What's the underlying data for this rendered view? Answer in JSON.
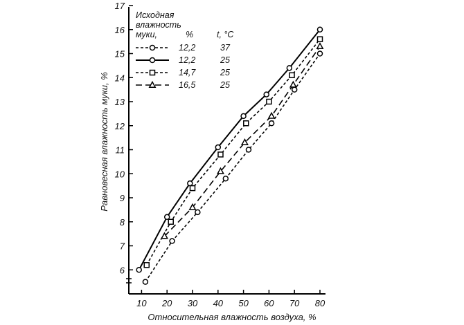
{
  "chart_data": {
    "type": "line",
    "xlabel": "Относительная влажность воздуха, %",
    "ylabel": "Равновесная влажность муки, %",
    "xlim": [
      5,
      80
    ],
    "ylim": [
      5,
      17
    ],
    "x_ticks": [
      "10",
      "20",
      "30",
      "40",
      "50",
      "60",
      "70",
      "80"
    ],
    "y_ticks": [
      "6",
      "7",
      "8",
      "9",
      "10",
      "11",
      "12",
      "13",
      "14",
      "15",
      "16",
      "17"
    ],
    "legend_position": "top-left",
    "legend": {
      "title_line1": "Исходная",
      "title_line2": "влажность",
      "title_line3": "муки,",
      "col_moisture": "%",
      "col_temp": "t, °C"
    },
    "series": [
      {
        "moisture": "12,2",
        "temp": "37",
        "marker": "circle",
        "style": "dashed",
        "points": [
          [
            11.5,
            5.5
          ],
          [
            22,
            7.2
          ],
          [
            32,
            8.4
          ],
          [
            43,
            9.8
          ],
          [
            52,
            11.0
          ],
          [
            61,
            12.1
          ],
          [
            70,
            13.5
          ],
          [
            80,
            15.0
          ]
        ]
      },
      {
        "moisture": "12,2",
        "temp": "25",
        "marker": "circle",
        "style": "solid",
        "points": [
          [
            9,
            6.0
          ],
          [
            20,
            8.2
          ],
          [
            29,
            9.6
          ],
          [
            40,
            11.1
          ],
          [
            50,
            12.4
          ],
          [
            59,
            13.3
          ],
          [
            68,
            14.4
          ],
          [
            80,
            16.0
          ]
        ]
      },
      {
        "moisture": "14,7",
        "temp": "25",
        "marker": "square",
        "style": "dashed",
        "points": [
          [
            12,
            6.2
          ],
          [
            21.5,
            8.0
          ],
          [
            30,
            9.4
          ],
          [
            41,
            10.8
          ],
          [
            51,
            12.1
          ],
          [
            60,
            13.0
          ],
          [
            69,
            14.1
          ],
          [
            80,
            15.6
          ]
        ]
      },
      {
        "moisture": "16,5",
        "temp": "25",
        "marker": "triangle",
        "style": "dash-long",
        "points": [
          [
            19,
            7.4
          ],
          [
            30,
            8.6
          ],
          [
            41,
            10.1
          ],
          [
            50.5,
            11.3
          ],
          [
            61,
            12.4
          ],
          [
            69.5,
            13.7
          ],
          [
            80,
            15.3
          ]
        ]
      }
    ]
  }
}
